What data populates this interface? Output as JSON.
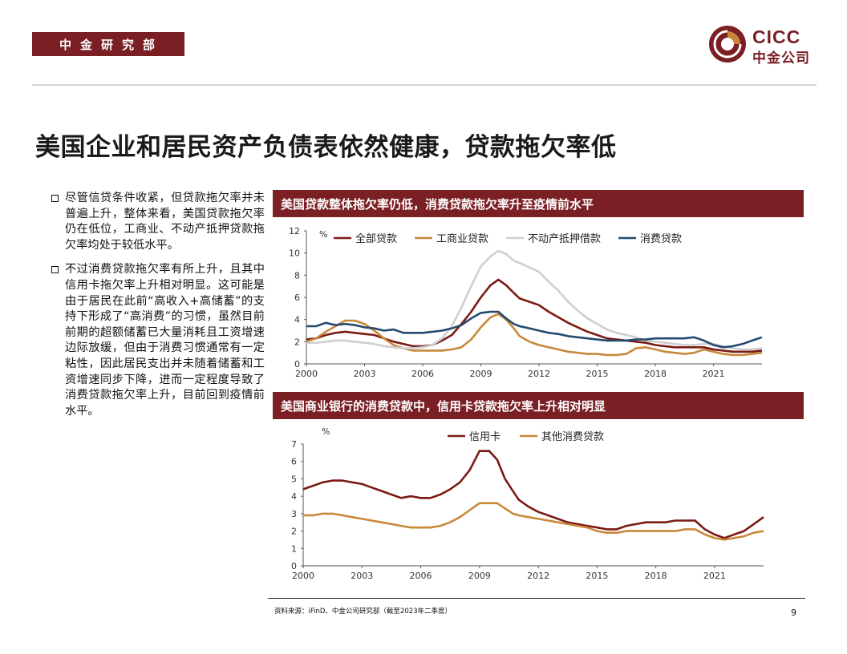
{
  "header": {
    "dept": "中金研究部",
    "logo_en": "CICC",
    "logo_cn": "中金公司"
  },
  "page_title": "美国企业和居民资产负债表依然健康，贷款拖欠率低",
  "bullets": [
    "尽管信贷条件收紧，但贷款拖欠率并未普遍上升，整体来看，美国贷款拖欠率仍在低位，工商业、不动产抵押贷款拖欠率均处于较低水平。",
    "不过消费贷款拖欠率有所上升，且其中信用卡拖欠率上升相对明显。这可能是由于居民在此前“高收入+高储蓄”的支持下形成了“高消费”的习惯，虽然目前前期的超额储蓄已大量消耗且工资增速边际放缓，但由于消费习惯通常有一定粘性，因此居民支出并未随着储蓄和工资增速同步下降，进而一定程度导致了消费贷款拖欠率上升，目前回到疫情前水平。"
  ],
  "colors": {
    "brand": "#7a1f24",
    "all_loans": "#7b1a14",
    "ci_loans": "#c8883a",
    "real_estate": "#cfcfcf",
    "consumer": "#254a6e",
    "credit_card": "#7b1a14",
    "other_consumer": "#c8883a"
  },
  "footer": {
    "source": "资料来源：iFinD、中金公司研究部（截至2023年二季度）",
    "page": "9"
  },
  "chart_data": [
    {
      "type": "line",
      "title": "美国贷款整体拖欠率仍低，消费贷款拖欠率升至疫情前水平",
      "unit": "%",
      "xlabel": "",
      "ylabel": "",
      "xlim": [
        2000,
        2023.5
      ],
      "ylim": [
        0,
        12
      ],
      "xticks": [
        2000,
        2003,
        2006,
        2009,
        2012,
        2015,
        2018,
        2021
      ],
      "yticks": [
        0,
        2,
        4,
        6,
        8,
        10,
        12
      ],
      "grid": false,
      "legend": "top",
      "series": [
        {
          "name": "全部贷款",
          "color": "#7b1a14",
          "x": [
            2000,
            2000.5,
            2001,
            2001.5,
            2002,
            2002.5,
            2003,
            2003.5,
            2004,
            2004.5,
            2005,
            2005.5,
            2006,
            2006.5,
            2007,
            2007.5,
            2008,
            2008.5,
            2009,
            2009.5,
            2009.9,
            2010.3,
            2010.7,
            2011,
            2011.5,
            2012,
            2012.5,
            2013,
            2013.5,
            2014,
            2014.5,
            2015,
            2015.5,
            2016,
            2016.5,
            2017,
            2017.5,
            2018,
            2018.5,
            2019,
            2019.5,
            2020,
            2020.5,
            2021,
            2021.5,
            2022,
            2022.5,
            2023,
            2023.5
          ],
          "y": [
            2.2,
            2.3,
            2.6,
            2.8,
            2.9,
            2.8,
            2.7,
            2.6,
            2.3,
            2.0,
            1.8,
            1.6,
            1.6,
            1.7,
            2.1,
            2.6,
            3.6,
            4.7,
            6.0,
            7.1,
            7.6,
            7.1,
            6.4,
            5.9,
            5.6,
            5.3,
            4.7,
            4.2,
            3.7,
            3.3,
            2.9,
            2.6,
            2.3,
            2.2,
            2.1,
            2.0,
            1.9,
            1.7,
            1.6,
            1.5,
            1.5,
            1.5,
            1.5,
            1.3,
            1.2,
            1.1,
            1.1,
            1.1,
            1.2
          ]
        },
        {
          "name": "工商业贷款",
          "color": "#c8883a",
          "x": [
            2000,
            2000.5,
            2001,
            2001.5,
            2002,
            2002.5,
            2003,
            2003.5,
            2004,
            2004.5,
            2005,
            2005.5,
            2006,
            2006.5,
            2007,
            2007.5,
            2008,
            2008.5,
            2009,
            2009.5,
            2009.9,
            2010.3,
            2010.7,
            2011,
            2011.5,
            2012,
            2012.5,
            2013,
            2013.5,
            2014,
            2014.5,
            2015,
            2015.5,
            2016,
            2016.5,
            2017,
            2017.5,
            2018,
            2018.5,
            2019,
            2019.5,
            2020,
            2020.5,
            2021,
            2021.5,
            2022,
            2022.5,
            2023,
            2023.5
          ],
          "y": [
            2.0,
            2.3,
            2.9,
            3.4,
            3.9,
            3.9,
            3.6,
            3.0,
            2.3,
            1.7,
            1.4,
            1.2,
            1.2,
            1.2,
            1.2,
            1.3,
            1.5,
            2.2,
            3.3,
            4.2,
            4.5,
            4.0,
            3.2,
            2.5,
            2.0,
            1.7,
            1.5,
            1.3,
            1.1,
            1.0,
            0.9,
            0.9,
            0.8,
            0.8,
            0.9,
            1.4,
            1.5,
            1.3,
            1.1,
            1.0,
            0.9,
            1.0,
            1.3,
            1.1,
            0.9,
            0.8,
            0.8,
            0.9,
            1.0
          ]
        },
        {
          "name": "不动产抵押借款",
          "color": "#cfcfcf",
          "x": [
            2000,
            2000.5,
            2001,
            2001.5,
            2002,
            2002.5,
            2003,
            2003.5,
            2004,
            2004.5,
            2005,
            2005.5,
            2006,
            2006.5,
            2007,
            2007.5,
            2008,
            2008.5,
            2009,
            2009.5,
            2009.9,
            2010.3,
            2010.7,
            2011,
            2011.5,
            2012,
            2012.5,
            2013,
            2013.5,
            2014,
            2014.5,
            2015,
            2015.5,
            2016,
            2016.5,
            2017,
            2017.5,
            2018,
            2018.5,
            2019,
            2019.5,
            2020,
            2020.5,
            2021,
            2021.5,
            2022,
            2022.5,
            2023,
            2023.5
          ],
          "y": [
            1.9,
            1.9,
            2.0,
            2.1,
            2.1,
            2.0,
            1.9,
            1.8,
            1.6,
            1.5,
            1.4,
            1.4,
            1.5,
            1.7,
            2.3,
            3.4,
            5.1,
            7.0,
            8.8,
            9.7,
            10.2,
            9.9,
            9.3,
            9.1,
            8.7,
            8.3,
            7.4,
            6.6,
            5.6,
            4.8,
            4.1,
            3.6,
            3.1,
            2.8,
            2.6,
            2.4,
            2.1,
            2.0,
            1.9,
            1.8,
            1.7,
            1.7,
            1.8,
            1.8,
            1.6,
            1.4,
            1.3,
            1.3,
            1.4
          ]
        },
        {
          "name": "消费贷款",
          "color": "#254a6e",
          "x": [
            2000,
            2000.5,
            2001,
            2001.5,
            2002,
            2002.5,
            2003,
            2003.5,
            2004,
            2004.5,
            2005,
            2005.5,
            2006,
            2006.5,
            2007,
            2007.5,
            2008,
            2008.5,
            2009,
            2009.5,
            2009.9,
            2010.3,
            2010.7,
            2011,
            2011.5,
            2012,
            2012.5,
            2013,
            2013.5,
            2014,
            2014.5,
            2015,
            2015.5,
            2016,
            2016.5,
            2017,
            2017.5,
            2018,
            2018.5,
            2019,
            2019.5,
            2020,
            2020.5,
            2021,
            2021.5,
            2022,
            2022.5,
            2023,
            2023.5
          ],
          "y": [
            3.4,
            3.4,
            3.7,
            3.5,
            3.6,
            3.5,
            3.3,
            3.2,
            3.0,
            3.1,
            2.8,
            2.8,
            2.8,
            2.9,
            3.0,
            3.2,
            3.5,
            4.1,
            4.6,
            4.7,
            4.7,
            4.1,
            3.6,
            3.4,
            3.2,
            3.0,
            2.8,
            2.7,
            2.5,
            2.4,
            2.3,
            2.2,
            2.1,
            2.1,
            2.1,
            2.2,
            2.2,
            2.3,
            2.3,
            2.3,
            2.3,
            2.4,
            2.1,
            1.7,
            1.5,
            1.6,
            1.8,
            2.1,
            2.4
          ]
        }
      ]
    },
    {
      "type": "line",
      "title": "美国商业银行的消费贷款中，信用卡贷款拖欠率上升相对明显",
      "unit": "%",
      "xlabel": "",
      "ylabel": "",
      "xlim": [
        2000,
        2023.5
      ],
      "ylim": [
        0,
        7
      ],
      "xticks": [
        2000,
        2003,
        2006,
        2009,
        2012,
        2015,
        2018,
        2021
      ],
      "yticks": [
        0,
        1,
        2,
        3,
        4,
        5,
        6,
        7
      ],
      "grid": false,
      "legend": "top",
      "series": [
        {
          "name": "信用卡",
          "color": "#7b1a14",
          "x": [
            2000,
            2000.5,
            2001,
            2001.5,
            2002,
            2002.5,
            2003,
            2003.5,
            2004,
            2004.5,
            2005,
            2005.5,
            2006,
            2006.5,
            2007,
            2007.5,
            2008,
            2008.5,
            2009,
            2009.5,
            2009.9,
            2010.3,
            2010.7,
            2011,
            2011.5,
            2012,
            2012.5,
            2013,
            2013.5,
            2014,
            2014.5,
            2015,
            2015.5,
            2016,
            2016.5,
            2017,
            2017.5,
            2018,
            2018.5,
            2019,
            2019.5,
            2020,
            2020.5,
            2021,
            2021.5,
            2022,
            2022.5,
            2023,
            2023.5
          ],
          "y": [
            4.4,
            4.6,
            4.8,
            4.9,
            4.9,
            4.8,
            4.7,
            4.5,
            4.3,
            4.1,
            3.9,
            4.0,
            3.9,
            3.9,
            4.1,
            4.4,
            4.8,
            5.5,
            6.6,
            6.6,
            6.1,
            5.0,
            4.3,
            3.8,
            3.4,
            3.1,
            2.9,
            2.7,
            2.5,
            2.4,
            2.3,
            2.2,
            2.1,
            2.1,
            2.3,
            2.4,
            2.5,
            2.5,
            2.5,
            2.6,
            2.6,
            2.6,
            2.1,
            1.8,
            1.6,
            1.8,
            2.0,
            2.4,
            2.8
          ]
        },
        {
          "name": "其他消费贷款",
          "color": "#c8883a",
          "x": [
            2000,
            2000.5,
            2001,
            2001.5,
            2002,
            2002.5,
            2003,
            2003.5,
            2004,
            2004.5,
            2005,
            2005.5,
            2006,
            2006.5,
            2007,
            2007.5,
            2008,
            2008.5,
            2009,
            2009.5,
            2009.9,
            2010.3,
            2010.7,
            2011,
            2011.5,
            2012,
            2012.5,
            2013,
            2013.5,
            2014,
            2014.5,
            2015,
            2015.5,
            2016,
            2016.5,
            2017,
            2017.5,
            2018,
            2018.5,
            2019,
            2019.5,
            2020,
            2020.5,
            2021,
            2021.5,
            2022,
            2022.5,
            2023,
            2023.5
          ],
          "y": [
            2.9,
            2.9,
            3.0,
            3.0,
            2.9,
            2.8,
            2.7,
            2.6,
            2.5,
            2.4,
            2.3,
            2.2,
            2.2,
            2.2,
            2.3,
            2.5,
            2.8,
            3.2,
            3.6,
            3.6,
            3.6,
            3.3,
            3.0,
            2.9,
            2.8,
            2.7,
            2.6,
            2.5,
            2.4,
            2.3,
            2.2,
            2.0,
            1.9,
            1.9,
            2.0,
            2.0,
            2.0,
            2.0,
            2.0,
            2.0,
            2.1,
            2.1,
            1.8,
            1.6,
            1.5,
            1.6,
            1.7,
            1.9,
            2.0
          ]
        }
      ]
    }
  ]
}
